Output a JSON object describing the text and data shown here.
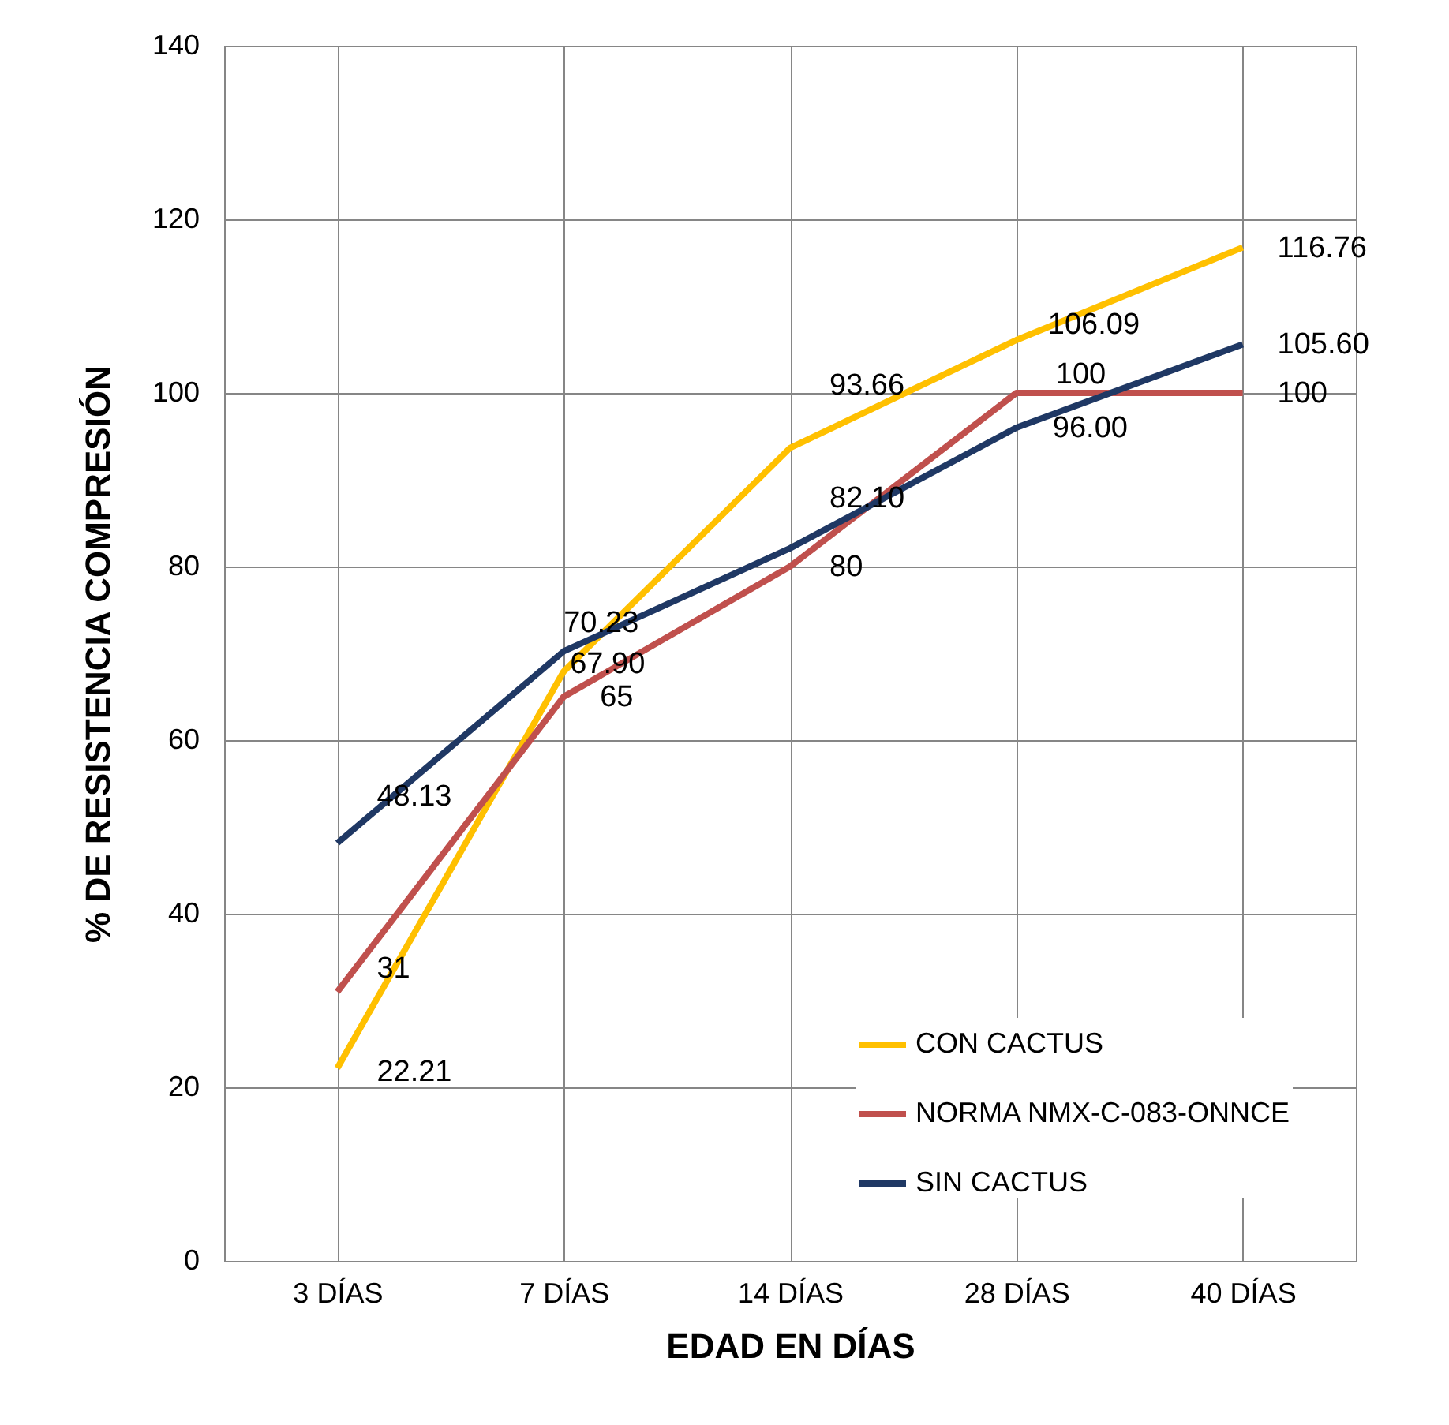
{
  "chart_data": {
    "type": "line",
    "xlabel": "EDAD EN DÍAS",
    "ylabel": "% DE RESISTENCIA COMPRESIÓN",
    "categories": [
      "3 DÍAS",
      "7 DÍAS",
      "14 DÍAS",
      "28 DÍAS",
      "40 DÍAS"
    ],
    "ylim": [
      0,
      140
    ],
    "yticks": [
      0,
      20,
      40,
      60,
      80,
      100,
      120,
      140
    ],
    "grid": true,
    "legend": "bottom right",
    "series": [
      {
        "name": "CON CACTUS",
        "color": "#ffc000",
        "values": [
          22.21,
          67.9,
          93.66,
          106.09,
          116.76
        ],
        "value_labels": [
          "22.21",
          "67.90",
          "93.66",
          "106.09",
          "116.76"
        ]
      },
      {
        "name": "NORMA NMX-C-083-ONNCE",
        "color": "#c0504d",
        "values": [
          31,
          65,
          80,
          100,
          100
        ],
        "value_labels": [
          "31",
          "65",
          "80",
          "100",
          "100"
        ]
      },
      {
        "name": "SIN CACTUS",
        "color": "#1f3864",
        "values": [
          48.13,
          70.23,
          82.1,
          96.0,
          105.6
        ],
        "value_labels": [
          "48.13",
          "70.23",
          "82.10",
          "96.00",
          "105.60"
        ]
      }
    ]
  }
}
